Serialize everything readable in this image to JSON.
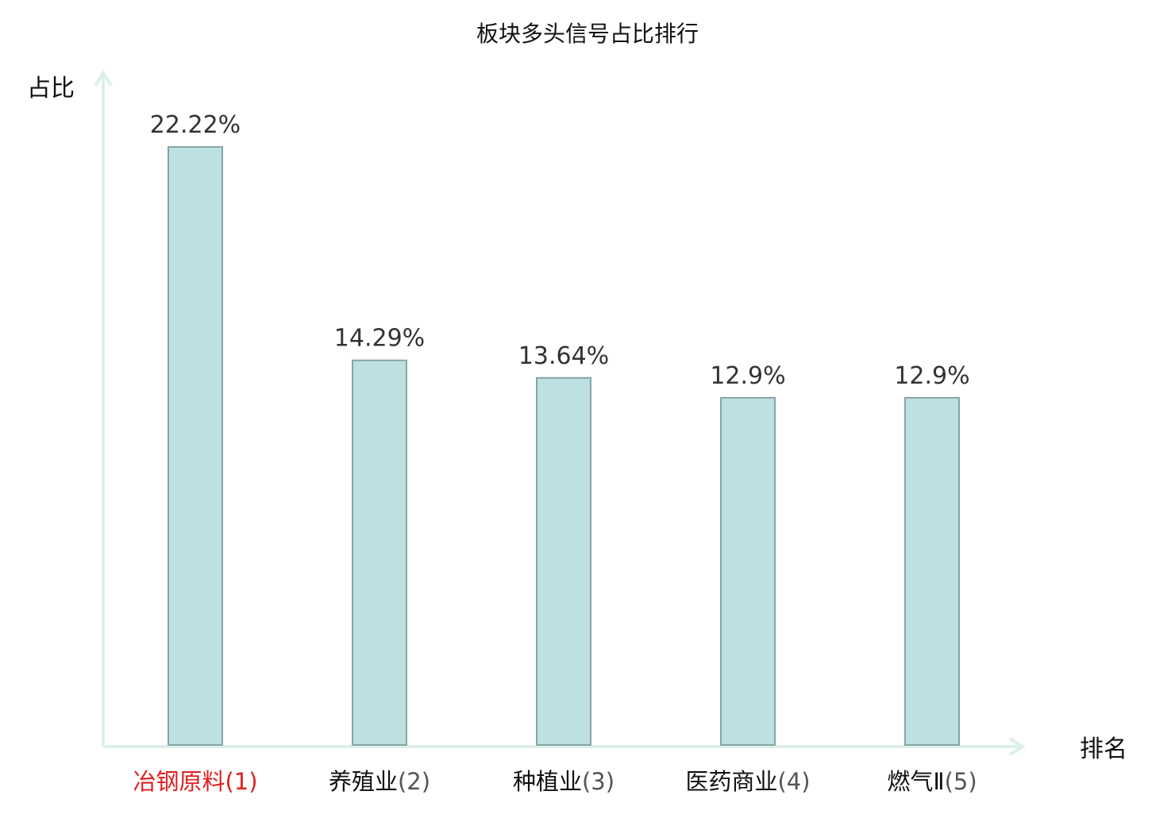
{
  "chart_data": {
    "type": "bar",
    "title": "板块多头信号占比排行",
    "xlabel": "排名",
    "ylabel": "占比",
    "categories": [
      "冶钢原料(1)",
      "养殖业(2)",
      "种植业(3)",
      "医药商业(4)",
      "燃气Ⅱ(5)"
    ],
    "category_names": [
      "冶钢原料",
      "养殖业",
      "种植业",
      "医药商业",
      "燃气Ⅱ"
    ],
    "category_ranks": [
      "(1)",
      "(2)",
      "(3)",
      "(4)",
      "(5)"
    ],
    "values": [
      22.22,
      14.29,
      13.64,
      12.9,
      12.9
    ],
    "value_labels": [
      "22.22%",
      "14.29%",
      "13.64%",
      "12.9%",
      "12.9%"
    ],
    "ylim": [
      0,
      24
    ],
    "grid": false,
    "highlight_index": 0,
    "colors": {
      "bar_fill": "#bde0e2",
      "bar_stroke": "#87a4a6",
      "axis": "#dcefeb",
      "highlight_text": "#e02020",
      "normal_text": "#111111",
      "rank_text": "#555555"
    }
  }
}
